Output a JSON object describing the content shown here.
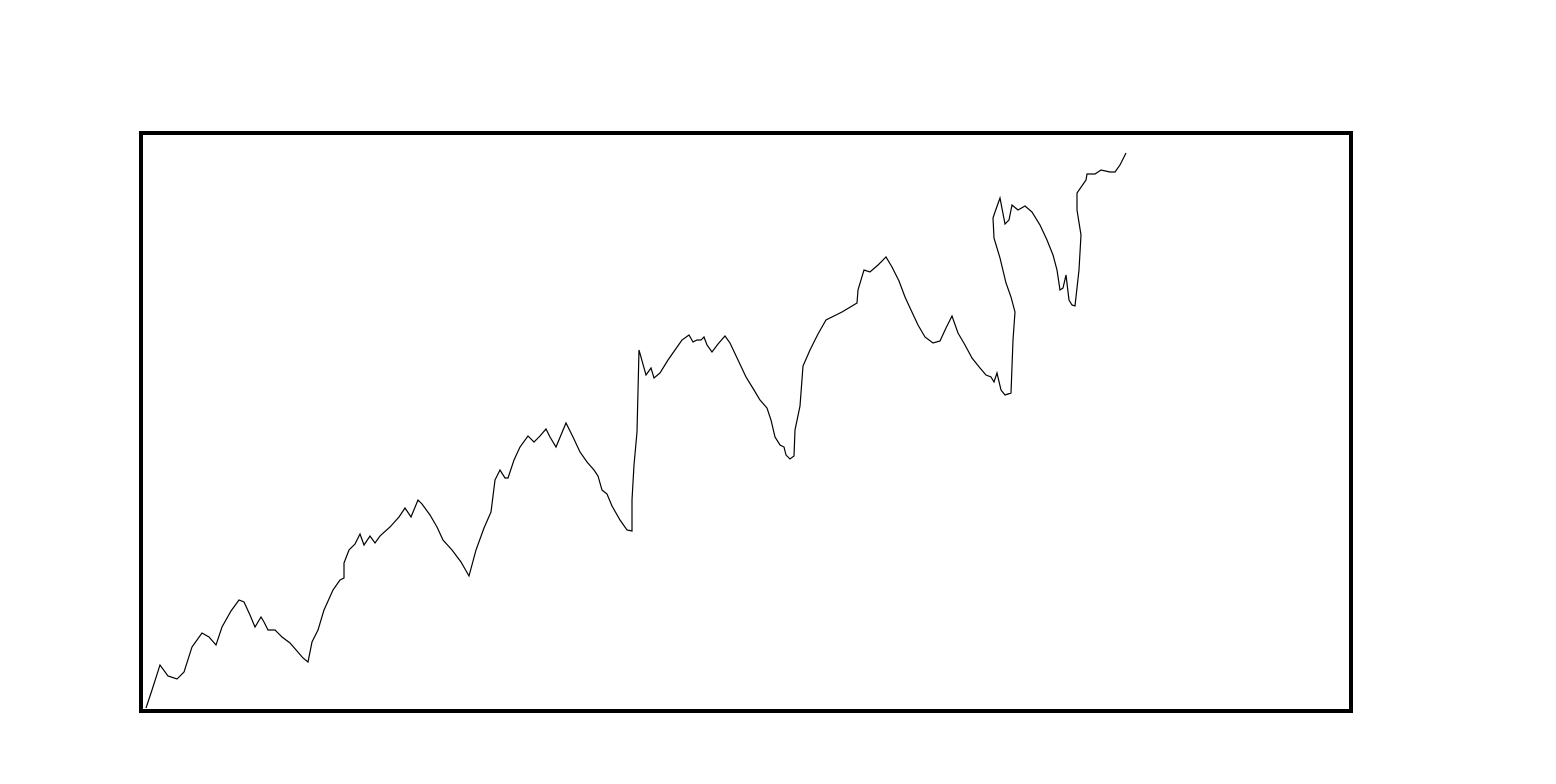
{
  "chart_data": {
    "type": "line",
    "color": "#000000",
    "xlim": [
      0,
      1210
    ],
    "ylim": [
      0,
      578
    ],
    "x": [
      5,
      11,
      19,
      27,
      36,
      43,
      51,
      61,
      68,
      75,
      81,
      90,
      98,
      103,
      109,
      114,
      120,
      123,
      127,
      134,
      141,
      149,
      156,
      162,
      167,
      171,
      177,
      183,
      192,
      199,
      203,
      203,
      208,
      214,
      219,
      223,
      229,
      234,
      239,
      249,
      258,
      264,
      270,
      277,
      281,
      289,
      296,
      302,
      311,
      320,
      328,
      335,
      343,
      350,
      354,
      359,
      364,
      367,
      373,
      379,
      387,
      393,
      399,
      405,
      409,
      415,
      425,
      432,
      439,
      446,
      453,
      457,
      461,
      466,
      471,
      479,
      486,
      491,
      491,
      493,
      496,
      498,
      505,
      510,
      513,
      519,
      527,
      534,
      541,
      548,
      552,
      556,
      560,
      563,
      566,
      571,
      577,
      584,
      589,
      597,
      605,
      613,
      619,
      626,
      630,
      634,
      639,
      643,
      645,
      649,
      653,
      654,
      659,
      662,
      669,
      677,
      685,
      701,
      716,
      717,
      723,
      729,
      737,
      745,
      751,
      758,
      764,
      770,
      777,
      784,
      792,
      799,
      805,
      811,
      817,
      824,
      831,
      839,
      845,
      850,
      853,
      856,
      860,
      864,
      870,
      872,
      874,
      870,
      865,
      859,
      853,
      852,
      854,
      859,
      864,
      868,
      871,
      877,
      884,
      891,
      899,
      906,
      912,
      916,
      919,
      922,
      925,
      928,
      931,
      934,
      938,
      940,
      936,
      936,
      945,
      946,
      954,
      960,
      969,
      974,
      979,
      985
    ],
    "series": [
      {
        "values": [
          3,
          21,
          46,
          35,
          32,
          39,
          64,
          78,
          74,
          66,
          84,
          100,
          111,
          109,
          96,
          84,
          94,
          89,
          81,
          81,
          74,
          68,
          60,
          53,
          49,
          69,
          81,
          101,
          121,
          131,
          133,
          148,
          161,
          167,
          177,
          166,
          175,
          168,
          175,
          184,
          194,
          203,
          194,
          211,
          207,
          196,
          184,
          171,
          161,
          149,
          135,
          161,
          183,
          199,
          231,
          241,
          233,
          233,
          251,
          264,
          275,
          269,
          275,
          282,
          274,
          264,
          288,
          274,
          259,
          249,
          241,
          235,
          221,
          217,
          205,
          191,
          181,
          180,
          211,
          246,
          279,
          361,
          336,
          343,
          333,
          338,
          351,
          361,
          371,
          376,
          369,
          371,
          371,
          374,
          366,
          359,
          367,
          375,
          368,
          351,
          334,
          321,
          311,
          303,
          291,
          274,
          266,
          264,
          256,
          252,
          255,
          281,
          305,
          345,
          361,
          377,
          391,
          399,
          408,
          421,
          441,
          439,
          446,
          454,
          444,
          430,
          414,
          401,
          386,
          374,
          368,
          370,
          383,
          395,
          378,
          366,
          353,
          343,
          336,
          334,
          329,
          338,
          321,
          316,
          318,
          371,
          399,
          414,
          428,
          453,
          473,
          493,
          499,
          513,
          487,
          491,
          506,
          501,
          505,
          499,
          486,
          471,
          456,
          441,
          421,
          423,
          436,
          411,
          406,
          405,
          441,
          476,
          501,
          518,
          531,
          537,
          537,
          541,
          539,
          539,
          546,
          558
        ]
      }
    ]
  }
}
